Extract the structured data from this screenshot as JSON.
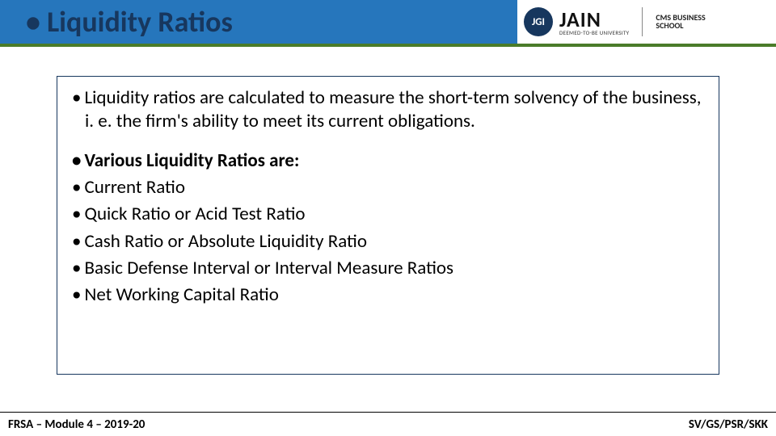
{
  "header": {
    "title": "Liquidity Ratios",
    "bar_color": "#2676bc",
    "title_color": "#17375e",
    "accent_line_color": "#4a7c2a"
  },
  "logo": {
    "badge": "JGI",
    "brand": "JAIN",
    "brand_sub": "DEEMED-TO-BE UNIVERSITY",
    "school_line1": "CMS BUSINESS",
    "school_line2": "SCHOOL"
  },
  "content": {
    "intro": "Liquidity ratios are calculated to measure the short-term solvency of the business, i. e. the firm's ability to meet its current obligations.",
    "list_heading": "Various Liquidity Ratios are:",
    "items": [
      "Current Ratio",
      "Quick Ratio or Acid Test Ratio",
      "Cash Ratio or Absolute Liquidity Ratio",
      "Basic Defense Interval or Interval Measure Ratios",
      "Net Working Capital Ratio"
    ],
    "border_color": "#17375e"
  },
  "footer": {
    "left": "FRSA – Module 4 – 2019-20",
    "right": "SV/GS/PSR/SKK"
  }
}
